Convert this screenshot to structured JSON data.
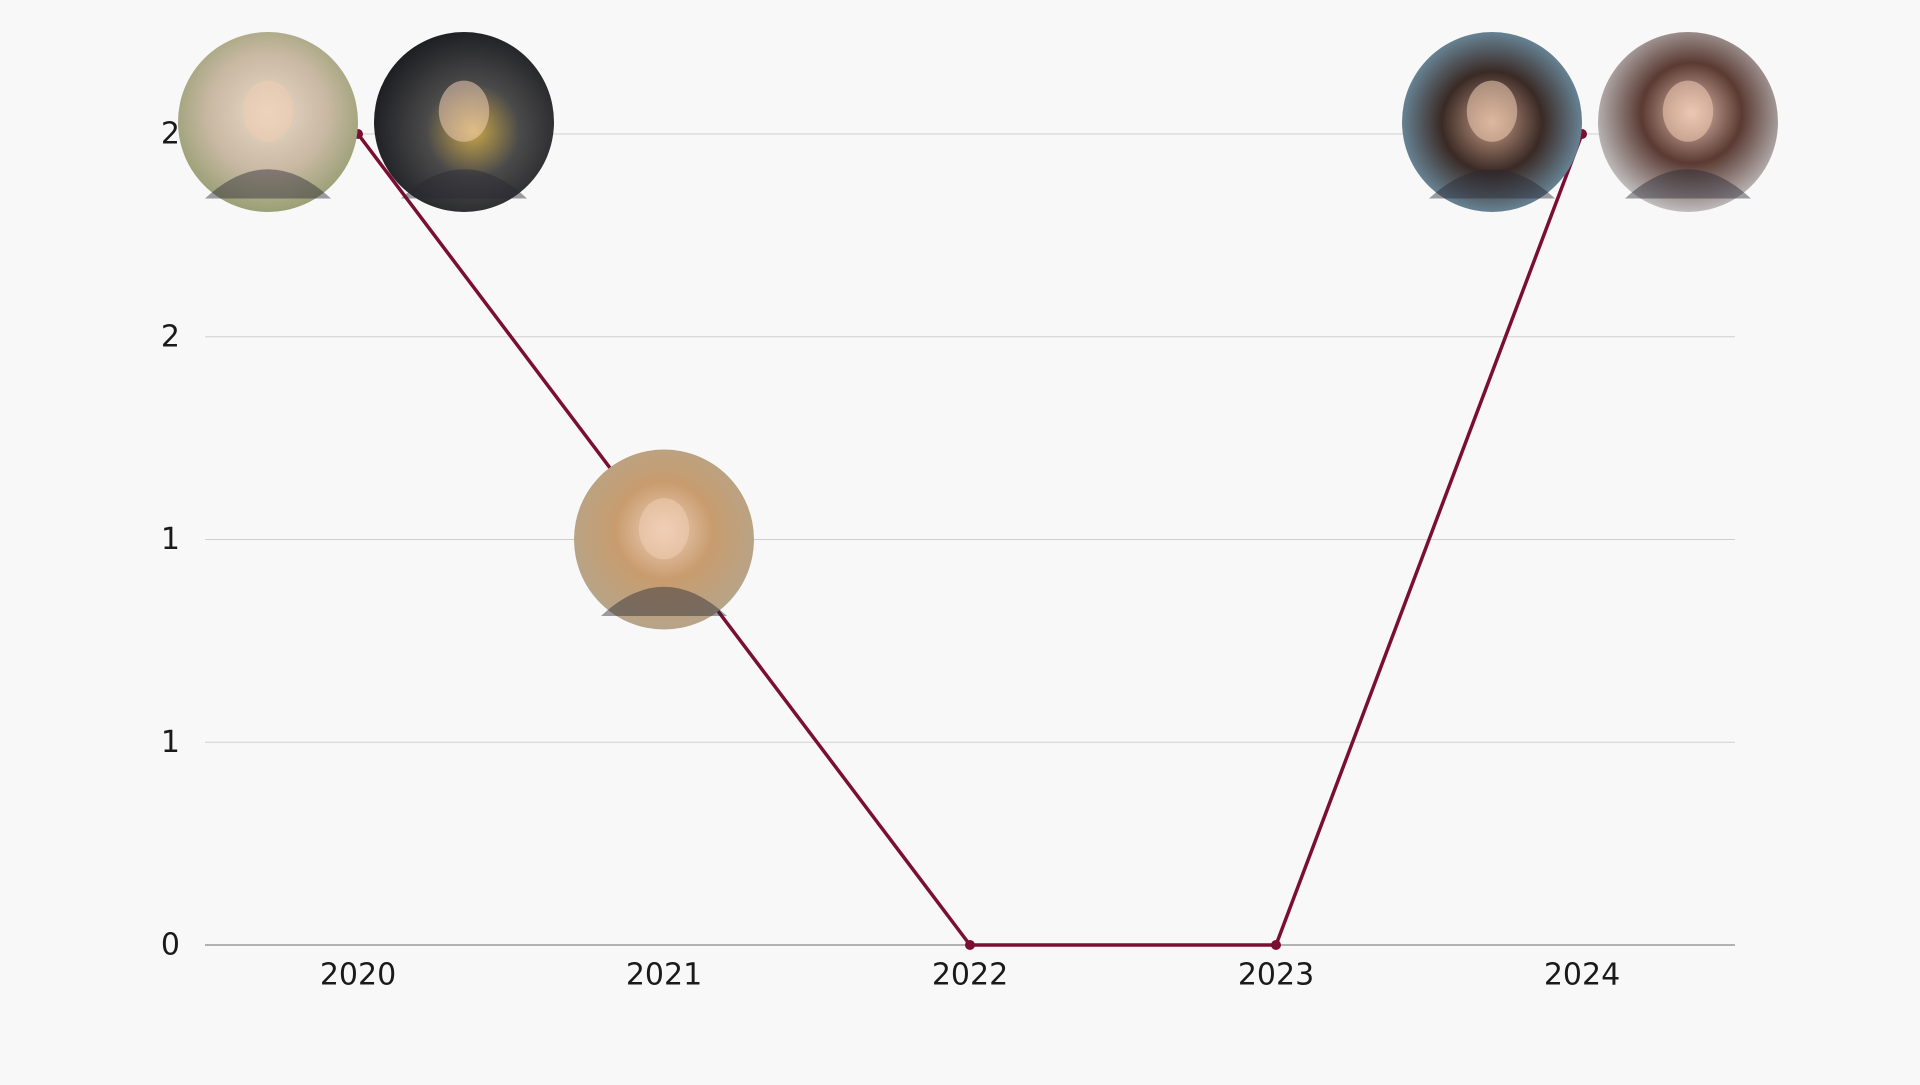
{
  "chart_data": {
    "type": "line",
    "title": "",
    "xlabel": "",
    "ylabel": "",
    "categories": [
      "2020",
      "2021",
      "2022",
      "2023",
      "2024"
    ],
    "series": [
      {
        "values": [
          2,
          1,
          0,
          0,
          2
        ],
        "color": "#7a0f33"
      }
    ],
    "ylim": [
      0,
      2
    ],
    "y_ticks": [
      {
        "value": 0,
        "label": "0"
      },
      {
        "value": 0.5,
        "label": "1"
      },
      {
        "value": 1,
        "label": "1"
      },
      {
        "value": 1.5,
        "label": "2"
      },
      {
        "value": 2,
        "label": "2"
      }
    ],
    "grid": true,
    "legend": "none",
    "photo_markers": [
      {
        "category": "2020",
        "count": 2
      },
      {
        "category": "2021",
        "count": 1
      },
      {
        "category": "2024",
        "count": 2
      }
    ],
    "colors": {
      "background": "#f8f8f8",
      "gridline": "#cfcfcf",
      "axis": "#9a9a9a",
      "line": "#7a0f33"
    }
  }
}
